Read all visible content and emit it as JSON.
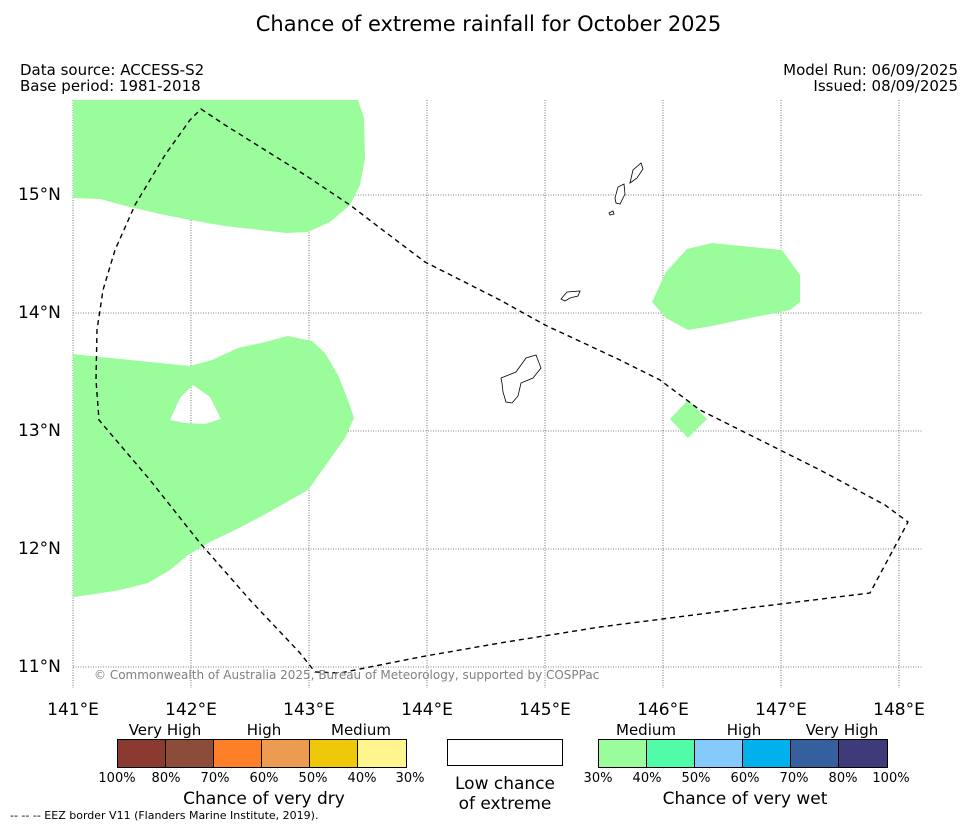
{
  "title": "Chance of extreme rainfall for October 2025",
  "data_source": "Data source: ACCESS-S2",
  "base_period": "Base period: 1981-2018",
  "model_run": "Model Run: 06/09/2025",
  "issued": "Issued: 08/09/2025",
  "copyright": "© Commonwealth of Australia 2025, Bureau of Meteorology, supported by COSPPac",
  "footnote": "--  --  -- EEZ border V11 (Flanders Marine Institute, 2019).",
  "map": {
    "x_ticks": [
      "141°E",
      "142°E",
      "143°E",
      "144°E",
      "145°E",
      "146°E",
      "147°E",
      "148°E"
    ],
    "y_ticks": [
      "15°N",
      "14°N",
      "13°N",
      "12°N",
      "11°N"
    ],
    "lon_range": [
      141,
      148.2
    ],
    "lat_range": [
      10.85,
      15.8
    ],
    "wet_fill_color": "#9bfc9b",
    "wet_category": "Medium (30%-40%)",
    "eez_border": "dashed"
  },
  "legend": {
    "dry": {
      "title": "Chance of very dry",
      "categories": [
        "Very High",
        "High",
        "Medium"
      ],
      "percent_labels": [
        "100%",
        "80%",
        "70%",
        "60%",
        "50%",
        "40%",
        "30%"
      ],
      "colors": [
        "#8b3a32",
        "#8b4c3a",
        "#fd7f28",
        "#ed9b50",
        "#efc80a",
        "#fff58e"
      ]
    },
    "low": {
      "line1": "Low chance",
      "line2": "of extreme",
      "color": "#ffffff"
    },
    "wet": {
      "title": "Chance of very wet",
      "categories": [
        "Medium",
        "High",
        "Very High"
      ],
      "percent_labels": [
        "30%",
        "40%",
        "50%",
        "60%",
        "70%",
        "80%",
        "100%"
      ],
      "colors": [
        "#9bfc9b",
        "#50fca7",
        "#84cbfc",
        "#00b1ee",
        "#355f9d",
        "#3e3b7b"
      ]
    }
  }
}
